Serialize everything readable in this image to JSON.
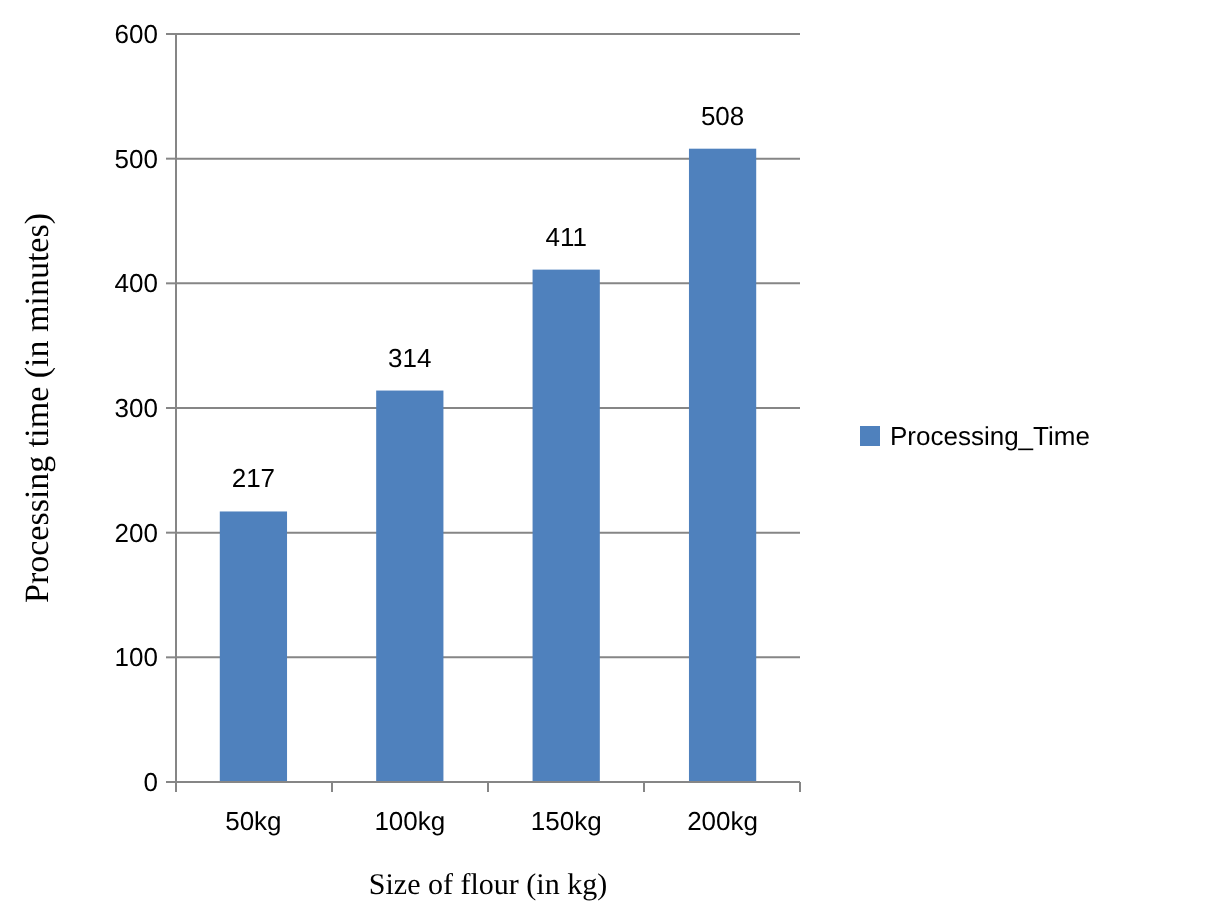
{
  "chart_data": {
    "type": "bar",
    "xlabel": "Size of flour (in kg)",
    "ylabel": "Processing time (in minutes)",
    "categories": [
      "50kg",
      "100kg",
      "150kg",
      "200kg"
    ],
    "series": [
      {
        "name": "Processing_Time",
        "color": "#4f81bd",
        "values": [
          217,
          314,
          411,
          508
        ]
      }
    ],
    "ylim": [
      0,
      600
    ],
    "yticks": [
      0,
      100,
      200,
      300,
      400,
      500,
      600
    ],
    "grid": "y",
    "legend": "right",
    "data_labels": true
  }
}
